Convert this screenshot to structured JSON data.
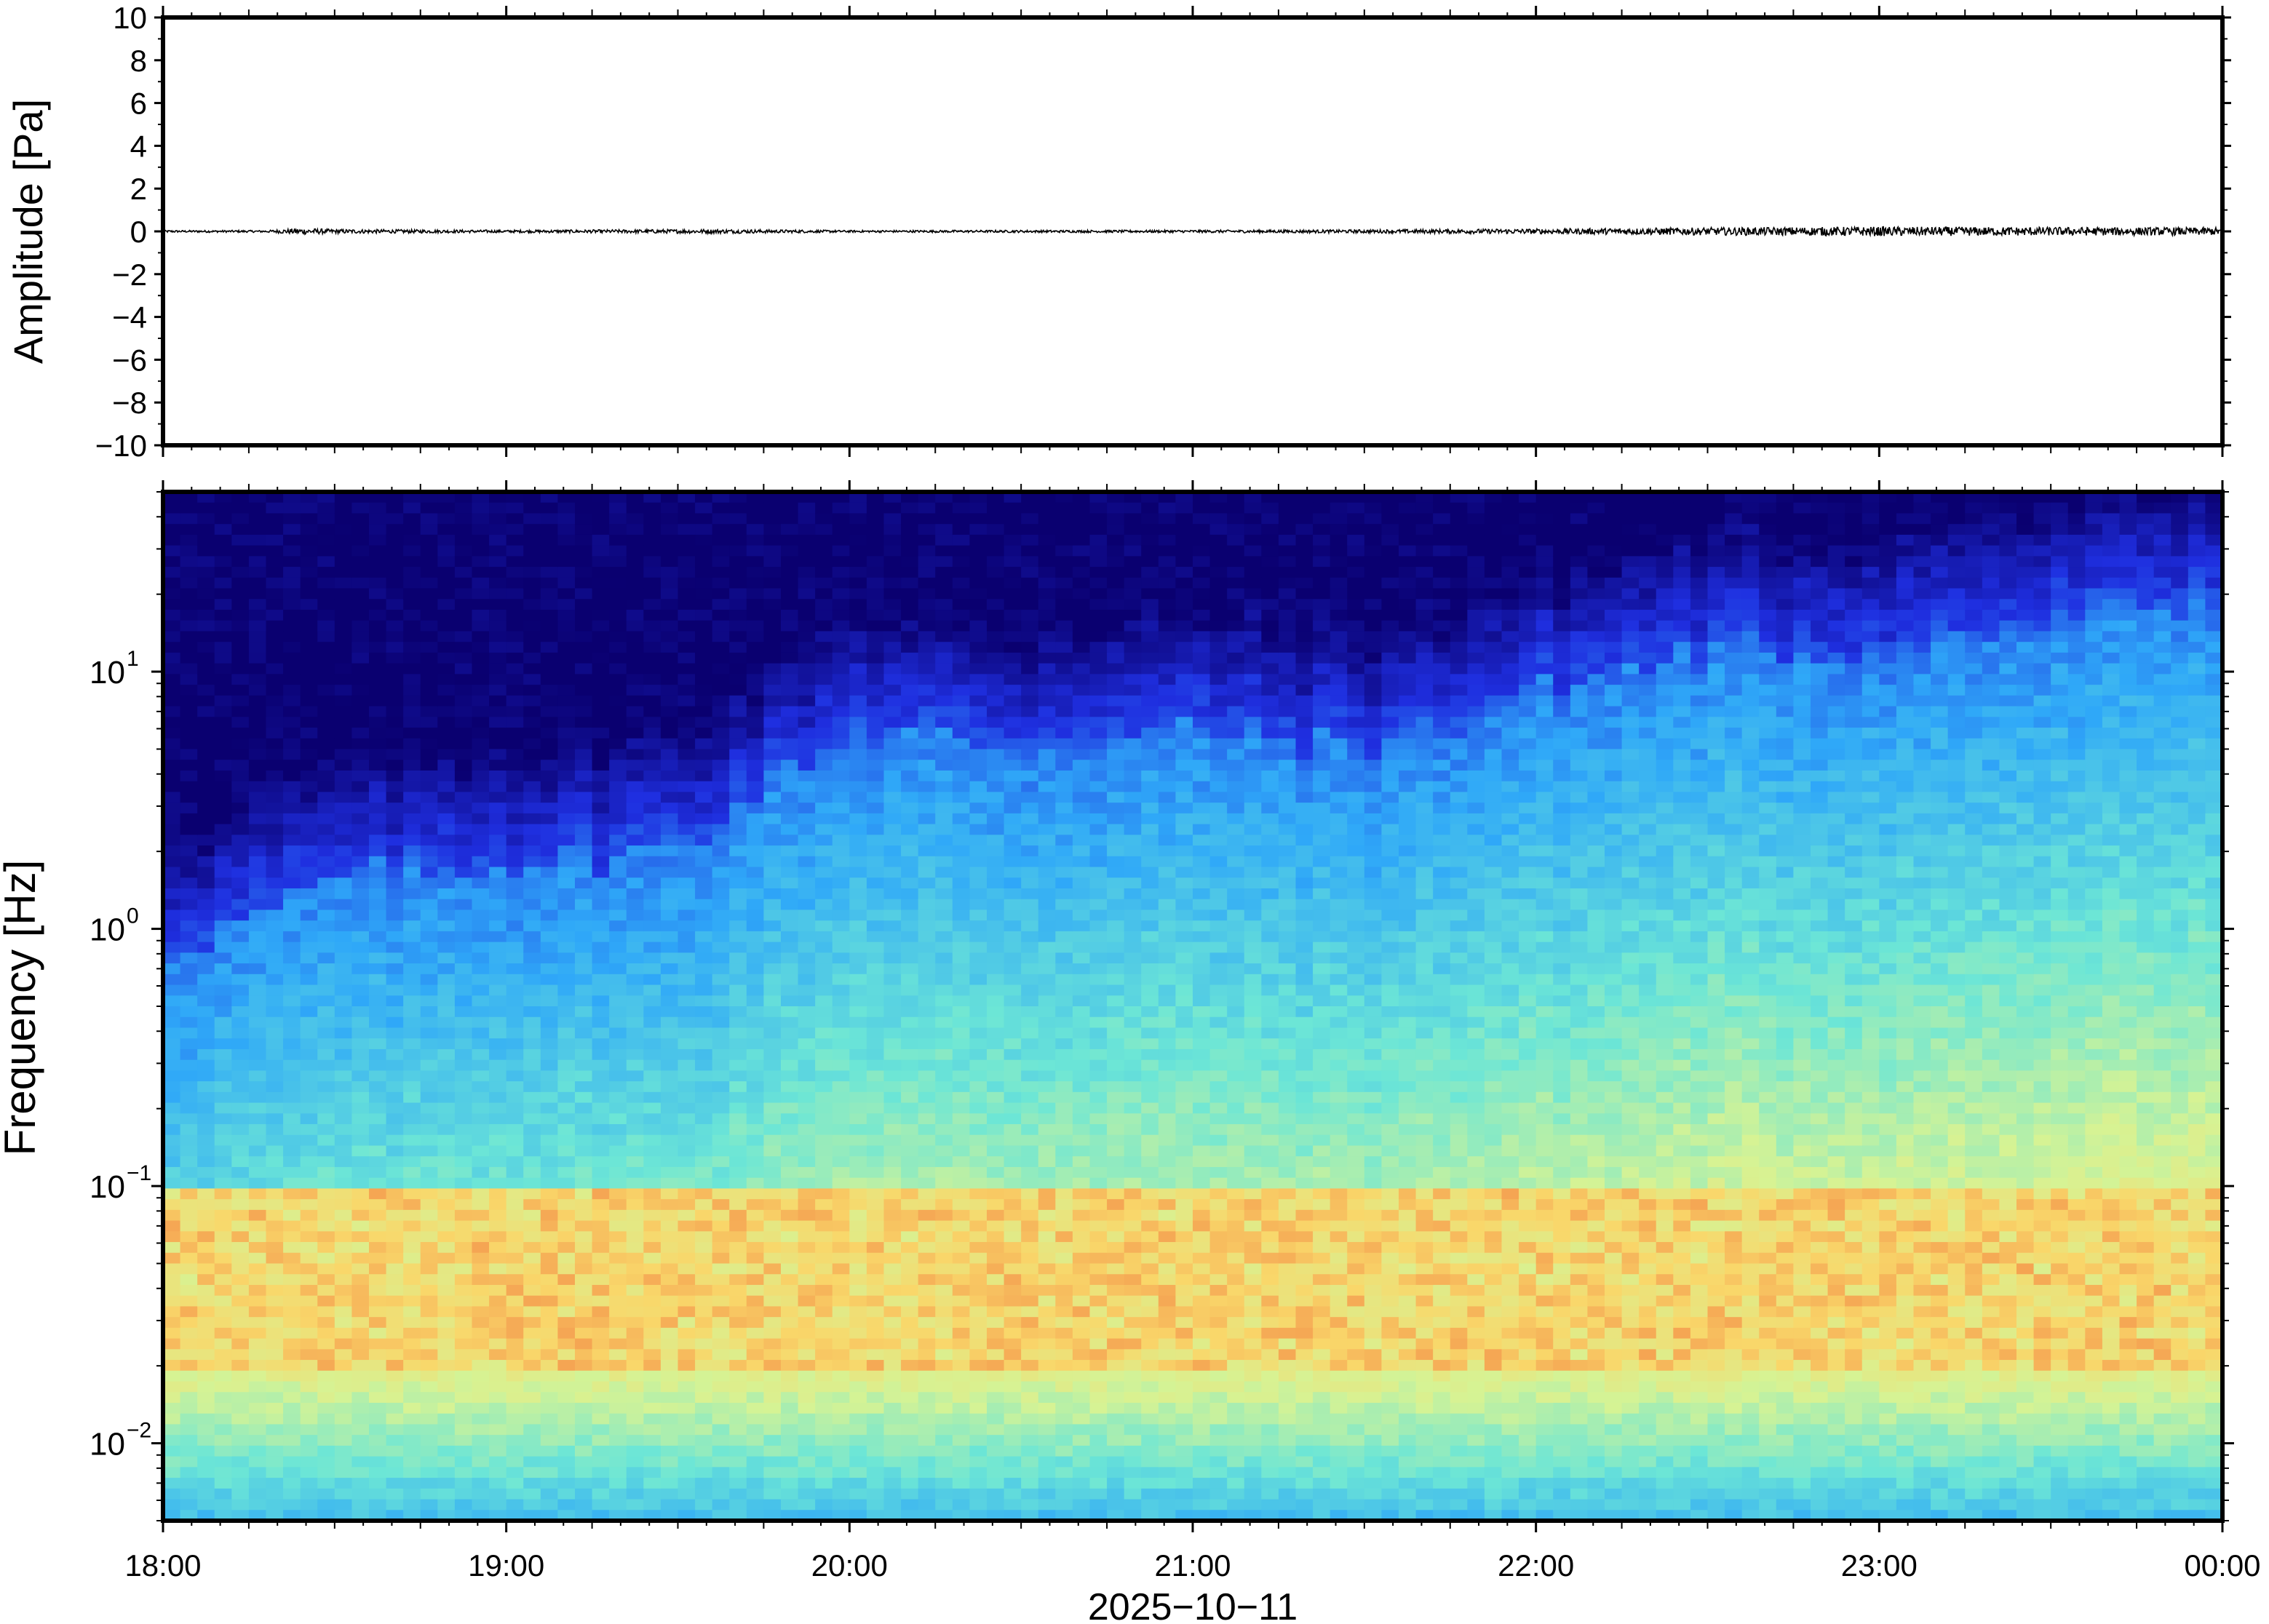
{
  "chart_data": [
    {
      "type": "line",
      "panel": "waveform",
      "ylabel": "Amplitude [Pa]",
      "ylim": [
        -10,
        10
      ],
      "yticks": [
        10,
        8,
        6,
        4,
        2,
        0,
        -2,
        -4,
        -6,
        -8,
        -10
      ],
      "ytick_labels": [
        "10",
        "8",
        "6",
        "4",
        "2",
        "0",
        "−2",
        "−4",
        "−6",
        "−8",
        "−10"
      ],
      "xlim": [
        "18:00",
        "00:00"
      ],
      "grid": false,
      "series": [
        {
          "color": "#000000",
          "description_values_t_h": [
            0,
            0.3,
            0.4,
            0.5,
            1.0,
            1.6,
            2.0,
            3.0,
            3.5,
            4.0,
            4.5,
            5.0,
            5.5,
            6.0
          ],
          "envelope_pa": [
            0.05,
            0.05,
            0.15,
            0.1,
            0.06,
            0.1,
            0.05,
            0.06,
            0.08,
            0.12,
            0.18,
            0.22,
            0.2,
            0.18
          ]
        }
      ]
    },
    {
      "type": "heatmap",
      "panel": "spectrogram",
      "ylabel": "Frequency [Hz]",
      "yscale": "log",
      "ylim_hz": [
        0.005,
        50
      ],
      "yticks_hz": [
        0.01,
        0.1,
        1,
        10
      ],
      "ytick_labels": [
        {
          "base": "10",
          "exp": "−2"
        },
        {
          "base": "10",
          "exp": "−1"
        },
        {
          "base": "10",
          "exp": "0"
        },
        {
          "base": "10",
          "exp": "1"
        }
      ],
      "xlabel": "2025−10−11",
      "xticks": [
        "18:00",
        "19:00",
        "20:00",
        "21:00",
        "22:00",
        "23:00",
        "00:00"
      ],
      "xlim": [
        "18:00",
        "00:00"
      ],
      "colormap": "jet",
      "colormap_stops": [
        "#0a0070",
        "#1f2fe0",
        "#2fa8f8",
        "#6ce6d6",
        "#d6f394",
        "#f9d76a",
        "#f49a4e"
      ],
      "high_frequency_cutoff_hz_by_hour": [
        {
          "t": "18:00",
          "hz": 0.8
        },
        {
          "t": "18:30",
          "hz": 1.5
        },
        {
          "t": "19:00",
          "hz": 1.8
        },
        {
          "t": "19:30",
          "hz": 2.0
        },
        {
          "t": "20:00",
          "hz": 6.0
        },
        {
          "t": "20:30",
          "hz": 5.0
        },
        {
          "t": "21:00",
          "hz": 6.0
        },
        {
          "t": "21:30",
          "hz": 5.0
        },
        {
          "t": "22:00",
          "hz": 8.0
        },
        {
          "t": "22:30",
          "hz": 12.0
        },
        {
          "t": "23:00",
          "hz": 12.0
        },
        {
          "t": "23:30",
          "hz": 15.0
        },
        {
          "t": "00:00",
          "hz": 20.0
        }
      ],
      "peak_band_hz": [
        0.02,
        0.1
      ],
      "grid": false
    }
  ]
}
